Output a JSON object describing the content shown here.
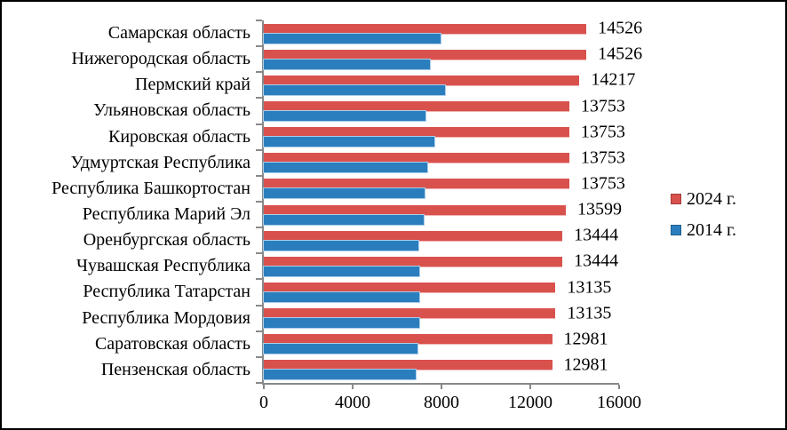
{
  "chart_data": {
    "type": "bar",
    "orientation": "horizontal",
    "title": "",
    "xlabel": "",
    "ylabel": "",
    "categories": [
      "Самарская область",
      "Нижегородская область",
      "Пермский край",
      "Ульяновская область",
      "Кировская область",
      "Удмуртская Республика",
      "Республика Башкортостан",
      "Республика Марий Эл",
      "Оренбургская область",
      "Чувашская Республика",
      "Республика Татарстан",
      "Республика Мордовия",
      "Саратовская область",
      "Пензенская область"
    ],
    "series": [
      {
        "name": "2024 г.",
        "color": "#d9514d",
        "show_data_labels": true,
        "values": [
          14526,
          14526,
          14217,
          13753,
          13753,
          13753,
          13753,
          13599,
          13444,
          13444,
          13135,
          13135,
          12981,
          12981
        ]
      },
      {
        "name": "2014 г.",
        "color": "#2b7ebd",
        "show_data_labels": false,
        "values_estimated": true,
        "values": [
          7970,
          7470,
          8170,
          7290,
          7670,
          7350,
          7250,
          7200,
          6950,
          6990,
          6990,
          7010,
          6920,
          6850
        ]
      }
    ],
    "xlim": [
      0,
      16000
    ],
    "x_tick_values": [
      0,
      4000,
      8000,
      12000,
      16000
    ],
    "x_tick_labels": [
      "0",
      "4000",
      "8000",
      "12000",
      "16000"
    ],
    "grid": false,
    "legend_position": "right",
    "axis_color": "#898989",
    "background_color": "#ffffff",
    "frame_border_color": "#000000"
  }
}
